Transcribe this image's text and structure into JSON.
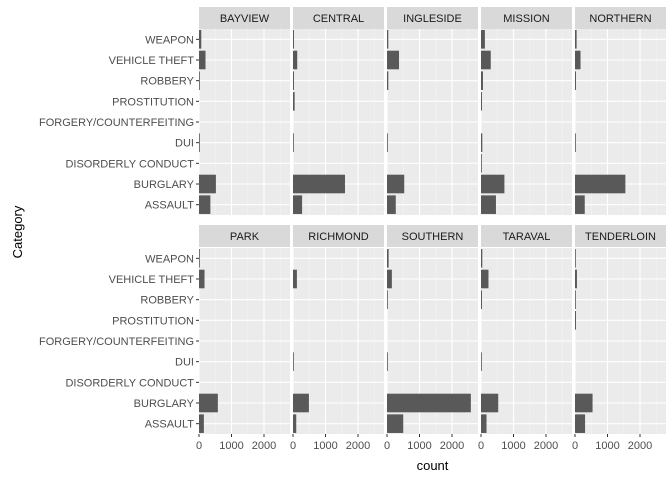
{
  "chart_data": {
    "type": "bar",
    "orientation": "horizontal",
    "facet": {
      "rows": 2,
      "cols": 5
    },
    "xlabel": "count",
    "ylabel": "Category",
    "xlim": [
      0,
      2800
    ],
    "xticks": [
      0,
      1000,
      2000
    ],
    "xtick_labels": [
      "0",
      "1000",
      "2000"
    ],
    "grid": true,
    "colors": {
      "panel_bg": "#ebebeb",
      "strip_bg": "#d9d9d9",
      "grid_major": "#ffffff",
      "grid_minor": "#f5f5f5",
      "bar": "#595959"
    },
    "categories": [
      "ASSAULT",
      "BURGLARY",
      "DISORDERLY CONDUCT",
      "DUI",
      "FORGERY/COUNTERFEITING",
      "PROSTITUTION",
      "ROBBERY",
      "VEHICLE THEFT",
      "WEAPON"
    ],
    "panels": [
      {
        "name": "BAYVIEW",
        "values": [
          350,
          520,
          0,
          20,
          0,
          0,
          25,
          200,
          70
        ]
      },
      {
        "name": "CENTRAL",
        "values": [
          280,
          1600,
          0,
          20,
          0,
          50,
          30,
          130,
          30
        ]
      },
      {
        "name": "INGLESIDE",
        "values": [
          270,
          530,
          0,
          20,
          0,
          0,
          40,
          370,
          40
        ]
      },
      {
        "name": "MISSION",
        "values": [
          460,
          720,
          20,
          40,
          0,
          30,
          60,
          300,
          120
        ]
      },
      {
        "name": "NORTHERN",
        "values": [
          300,
          1550,
          0,
          20,
          0,
          0,
          30,
          170,
          50
        ]
      },
      {
        "name": "PARK",
        "values": [
          150,
          580,
          0,
          0,
          0,
          0,
          0,
          170,
          20
        ]
      },
      {
        "name": "RICHMOND",
        "values": [
          100,
          490,
          0,
          20,
          0,
          0,
          0,
          120,
          0
        ]
      },
      {
        "name": "SOUTHERN",
        "values": [
          500,
          2580,
          0,
          20,
          0,
          0,
          20,
          150,
          50
        ]
      },
      {
        "name": "TARAVAL",
        "values": [
          170,
          530,
          0,
          20,
          0,
          0,
          30,
          230,
          40
        ]
      },
      {
        "name": "TENDERLOIN",
        "values": [
          310,
          540,
          0,
          0,
          0,
          30,
          20,
          60,
          20
        ]
      }
    ]
  }
}
